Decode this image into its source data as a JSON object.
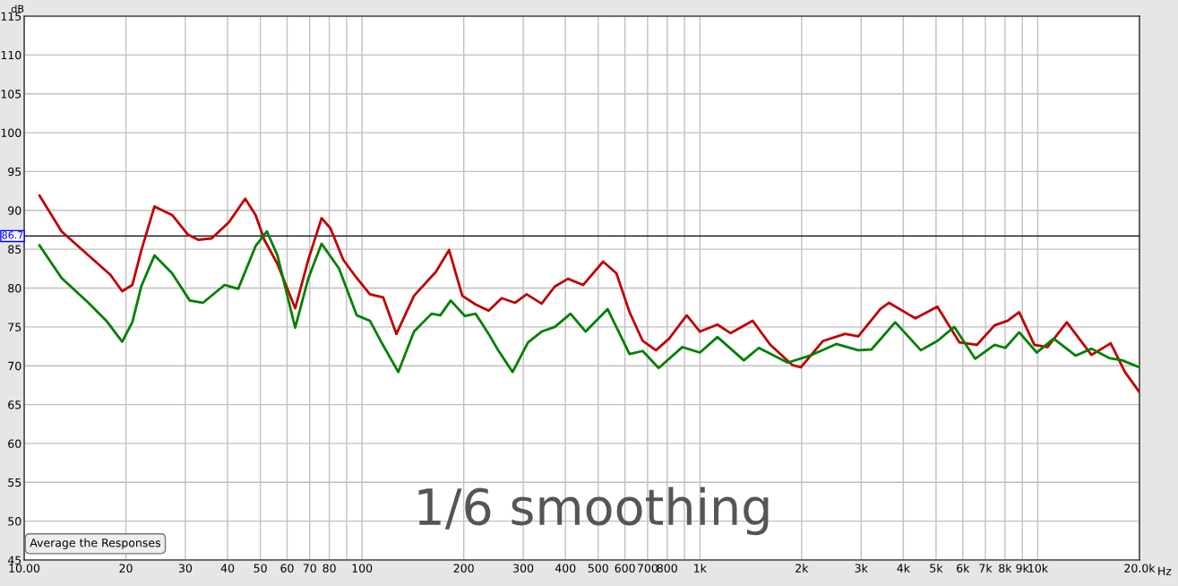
{
  "chart_data": {
    "type": "line",
    "xlabel": "Hz",
    "ylabel": "dB",
    "log": "x",
    "xlim": [
      10,
      20000
    ],
    "ylim": [
      45,
      115
    ],
    "xticks": [
      {
        "value": 10,
        "label": "10.00"
      },
      20,
      30,
      40,
      50,
      60,
      70,
      80,
      {
        "value": 90,
        "label": null
      },
      100,
      200,
      300,
      400,
      500,
      600,
      700,
      800,
      {
        "value": 900,
        "label": null
      },
      {
        "value": 1000,
        "label": "1k"
      },
      {
        "value": 2000,
        "label": "2k"
      },
      {
        "value": 3000,
        "label": "3k"
      },
      {
        "value": 4000,
        "label": "4k"
      },
      {
        "value": 5000,
        "label": "5k"
      },
      {
        "value": 6000,
        "label": "6k"
      },
      {
        "value": 7000,
        "label": "7k"
      },
      {
        "value": 8000,
        "label": "8k"
      },
      {
        "value": 9000,
        "label": "9k"
      },
      {
        "value": 10000,
        "label": "10k"
      },
      {
        "value": 20000,
        "label": "20.0k"
      }
    ],
    "yticks": [
      45,
      50,
      55,
      60,
      65,
      70,
      75,
      80,
      85,
      90,
      95,
      100,
      105,
      110,
      115
    ],
    "grid": true,
    "marker": "none",
    "line_style": "solid",
    "series": [
      {
        "color": "#c00000",
        "x": [
          11.1,
          12.9,
          15.5,
          18,
          19.5,
          20.9,
          22.2,
          24.3,
          27.4,
          30.5,
          32.8,
          35.9,
          40.4,
          45.1,
          48.4,
          51.4,
          56.2,
          63.4,
          69.4,
          75.9,
          80.6,
          88.1,
          96.4,
          105.5,
          115.5,
          126.4,
          142.5,
          165.5,
          181,
          198,
          216.7,
          237,
          259,
          284,
          307,
          340,
          372,
          407,
          451,
          517,
          566,
          619,
          677,
          741,
          811,
          914,
          1000,
          1127,
          1233,
          1432,
          1615,
          1876,
          1991,
          2315,
          2690,
          2943,
          3420,
          3630,
          4345,
          5045,
          5865,
          6610,
          7450,
          8150,
          8810,
          9770,
          10690,
          12190,
          14420,
          16440,
          18110,
          20000
        ],
        "values": [
          91.9,
          87.3,
          84.2,
          81.7,
          79.6,
          80.4,
          84.8,
          90.5,
          89.4,
          86.9,
          86.2,
          86.4,
          88.5,
          91.5,
          89.4,
          86.2,
          83.1,
          77.4,
          83.7,
          89.0,
          87.7,
          83.6,
          81.3,
          79.2,
          78.8,
          74.1,
          79.0,
          82.1,
          84.9,
          79.0,
          77.9,
          77.1,
          78.7,
          78.1,
          79.2,
          78.0,
          80.2,
          81.2,
          80.4,
          83.4,
          81.9,
          76.9,
          73.2,
          72.0,
          73.5,
          76.5,
          74.4,
          75.3,
          74.2,
          75.8,
          72.7,
          70.1,
          69.8,
          73.2,
          74.1,
          73.8,
          77.3,
          78.1,
          76.1,
          77.6,
          73.0,
          72.7,
          75.2,
          75.8,
          76.9,
          72.7,
          72.4,
          75.6,
          71.4,
          72.9,
          69.2,
          66.6
        ]
      },
      {
        "color": "#008000",
        "x": [
          11.1,
          12.9,
          15.5,
          17.5,
          19.5,
          20.9,
          22.2,
          24.3,
          27.4,
          30.9,
          33.8,
          39.2,
          43.0,
          48.4,
          52.3,
          56.2,
          63.4,
          69.4,
          75.9,
          85.5,
          96.4,
          105.5,
          113.5,
          128,
          142.5,
          160.6,
          170.5,
          183,
          201.6,
          216.7,
          237,
          252,
          279,
          310,
          340,
          372,
          414,
          459,
          533,
          619,
          677,
          755,
          887,
          1000,
          1127,
          1349,
          1494,
          1820,
          2116,
          2533,
          2943,
          3220,
          3785,
          4506,
          5045,
          5660,
          6530,
          7450,
          8015,
          8810,
          9935,
          11140,
          12940,
          14420,
          16250,
          17780,
          20000
        ],
        "values": [
          85.5,
          81.3,
          78.1,
          75.8,
          73.1,
          75.6,
          80.2,
          84.2,
          81.9,
          78.4,
          78.1,
          80.4,
          79.9,
          85.4,
          87.3,
          84.2,
          74.9,
          81.3,
          85.7,
          82.5,
          76.5,
          75.8,
          73.2,
          69.2,
          74.4,
          76.7,
          76.5,
          78.4,
          76.4,
          76.7,
          74.1,
          72.1,
          69.2,
          73.0,
          74.4,
          75.0,
          76.7,
          74.4,
          77.3,
          71.5,
          71.9,
          69.7,
          72.4,
          71.7,
          73.7,
          70.7,
          72.3,
          70.4,
          71.3,
          72.8,
          72.0,
          72.1,
          75.6,
          72.0,
          73.2,
          75.0,
          70.9,
          72.7,
          72.3,
          74.3,
          71.7,
          73.5,
          71.3,
          72.2,
          71.0,
          70.7,
          69.8
        ]
      }
    ],
    "ref_lines": [
      {
        "axis": "y",
        "value": 86.7,
        "label": "86.7",
        "color": "#000000"
      }
    ],
    "annotations": [
      "1/6 smoothing",
      "Average the Responses"
    ]
  }
}
